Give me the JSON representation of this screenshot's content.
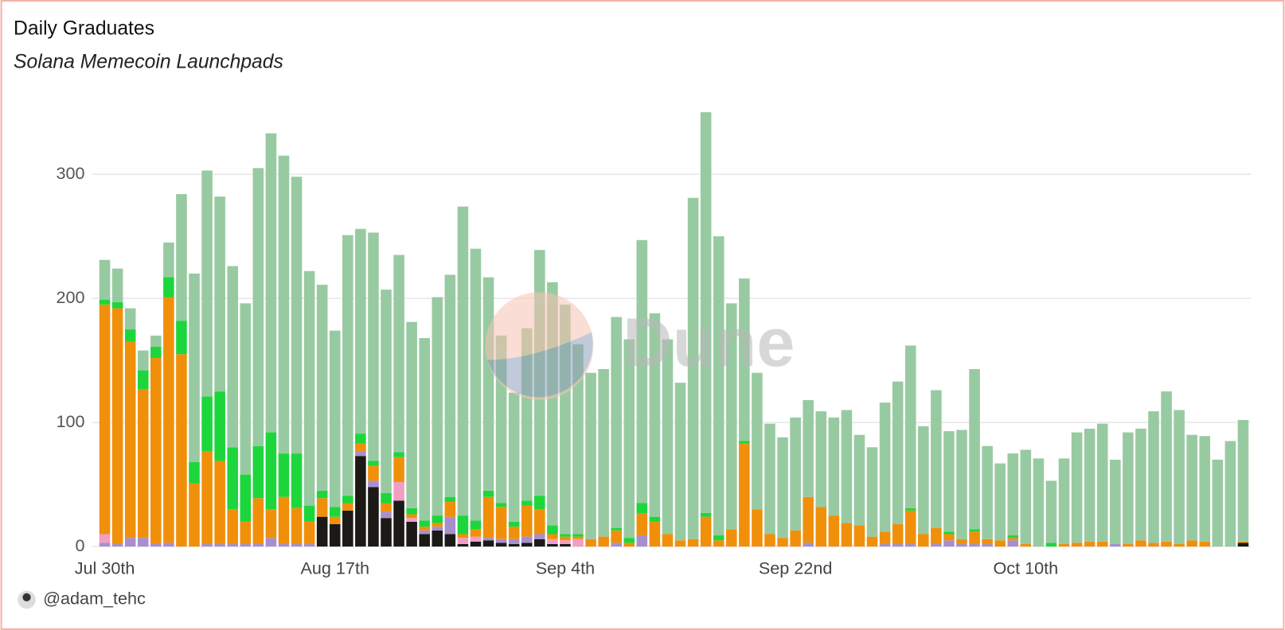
{
  "chart_data": {
    "type": "bar",
    "stacked": true,
    "title": "Daily Graduates",
    "subtitle": "Solana Memecoin Launchpads",
    "watermark": "Dune",
    "author": "@adam_tehc",
    "categories": [
      "Jul 30th",
      null,
      null,
      null,
      null,
      null,
      null,
      null,
      null,
      null,
      null,
      null,
      null,
      null,
      null,
      null,
      null,
      null,
      "Aug 17th",
      null,
      null,
      null,
      null,
      null,
      null,
      null,
      null,
      null,
      null,
      null,
      null,
      null,
      null,
      null,
      null,
      null,
      "Sep 4th",
      null,
      null,
      null,
      null,
      null,
      null,
      null,
      null,
      null,
      null,
      null,
      null,
      null,
      null,
      null,
      null,
      null,
      "Sep 22nd",
      null,
      null,
      null,
      null,
      null,
      null,
      null,
      null,
      null,
      null,
      null,
      null,
      null,
      null,
      null,
      null,
      null,
      "Oct 10th",
      null,
      null,
      null,
      null,
      null,
      null,
      null,
      null,
      null,
      null,
      null,
      null,
      null,
      null,
      null,
      null,
      null
    ],
    "series": [
      {
        "color": "#1c1a17",
        "values": [
          0,
          0,
          0,
          0,
          0,
          0,
          0,
          0,
          0,
          0,
          0,
          0,
          0,
          0,
          0,
          0,
          0,
          24,
          18,
          29,
          73,
          48,
          23,
          37,
          20,
          10,
          13,
          10,
          2,
          4,
          5,
          3,
          2,
          3,
          6,
          2,
          2,
          0,
          0,
          0,
          0,
          0,
          0,
          0,
          0,
          0,
          0,
          0,
          0,
          0,
          0,
          0,
          0,
          0,
          0,
          0,
          0,
          0,
          0,
          0,
          0,
          0,
          0,
          0,
          0,
          0,
          0,
          0,
          0,
          0,
          0,
          0,
          0,
          0,
          0,
          0,
          0,
          0,
          0,
          0,
          0,
          0,
          0,
          0,
          0,
          0,
          0,
          0,
          0,
          3
        ]
      },
      {
        "color": "#a78fcf",
        "values": [
          3,
          2,
          7,
          7,
          2,
          3,
          0,
          0,
          2,
          2,
          2,
          2,
          2,
          7,
          2,
          2,
          2,
          0,
          0,
          0,
          4,
          5,
          5,
          0,
          0,
          3,
          3,
          14,
          0,
          0,
          2,
          3,
          4,
          5,
          4,
          0,
          0,
          0,
          0,
          0,
          3,
          0,
          9,
          0,
          0,
          0,
          0,
          0,
          0,
          0,
          0,
          0,
          0,
          0,
          0,
          3,
          0,
          0,
          0,
          0,
          0,
          2,
          2,
          2,
          0,
          2,
          5,
          2,
          2,
          2,
          0,
          5,
          0,
          0,
          0,
          0,
          0,
          0,
          0,
          2,
          0,
          0,
          0,
          0,
          0,
          0,
          0,
          0,
          0,
          0
        ]
      },
      {
        "color": "#f29ec4",
        "values": [
          7,
          0,
          0,
          0,
          0,
          0,
          0,
          0,
          0,
          0,
          0,
          0,
          0,
          0,
          0,
          0,
          0,
          0,
          0,
          0,
          0,
          0,
          0,
          15,
          3,
          0,
          0,
          0,
          5,
          4,
          0,
          0,
          0,
          0,
          0,
          4,
          3,
          6,
          0,
          0,
          0,
          0,
          0,
          0,
          0,
          0,
          0,
          0,
          0,
          0,
          0,
          0,
          0,
          0,
          0,
          0,
          0,
          0,
          0,
          0,
          0,
          0,
          0,
          0,
          0,
          0,
          0,
          0,
          0,
          0,
          0,
          0,
          0,
          0,
          0,
          0,
          0,
          0,
          0,
          0,
          0,
          0,
          0,
          0,
          0,
          0,
          0,
          0,
          0,
          0
        ]
      },
      {
        "color": "#f0900a",
        "values": [
          185,
          190,
          158,
          120,
          150,
          198,
          155,
          51,
          75,
          67,
          28,
          18,
          37,
          23,
          38,
          29,
          18,
          15,
          6,
          6,
          6,
          12,
          7,
          20,
          3,
          3,
          3,
          12,
          3,
          6,
          33,
          26,
          10,
          25,
          20,
          4,
          3,
          2,
          6,
          8,
          10,
          3,
          18,
          20,
          10,
          5,
          6,
          24,
          5,
          14,
          83,
          30,
          10,
          7,
          13,
          37,
          32,
          25,
          19,
          17,
          8,
          10,
          16,
          27,
          10,
          13,
          5,
          4,
          10,
          4,
          5,
          2,
          2,
          0,
          0,
          2,
          3,
          4,
          4,
          0,
          2,
          5,
          3,
          4,
          2,
          5,
          4,
          0,
          0,
          1
        ]
      },
      {
        "color": "#1dd63c",
        "values": [
          4,
          5,
          10,
          15,
          9,
          16,
          27,
          17,
          44,
          56,
          50,
          38,
          42,
          62,
          35,
          44,
          13,
          6,
          8,
          6,
          8,
          4,
          8,
          4,
          5,
          5,
          6,
          4,
          15,
          7,
          5,
          3,
          4,
          4,
          11,
          7,
          2,
          2,
          0,
          0,
          2,
          4,
          8,
          4,
          0,
          0,
          0,
          3,
          4,
          0,
          2,
          0,
          0,
          0,
          0,
          0,
          0,
          0,
          0,
          0,
          0,
          0,
          0,
          2,
          0,
          0,
          2,
          0,
          2,
          0,
          0,
          2,
          0,
          0,
          3,
          0,
          0,
          0,
          0,
          0,
          0,
          0,
          0,
          0,
          0,
          0,
          0,
          0,
          0,
          0
        ]
      },
      {
        "color": "#98caa2",
        "values": [
          32,
          27,
          17,
          16,
          9,
          28,
          102,
          152,
          182,
          157,
          146,
          138,
          224,
          241,
          240,
          223,
          189,
          166,
          142,
          210,
          165,
          184,
          164,
          159,
          150,
          147,
          176,
          179,
          249,
          219,
          172,
          135,
          104,
          139,
          198,
          196,
          185,
          153,
          134,
          135,
          170,
          160,
          212,
          164,
          157,
          127,
          275,
          323,
          241,
          182,
          131,
          110,
          89,
          81,
          91,
          78,
          77,
          79,
          91,
          73,
          72,
          104,
          115,
          131,
          87,
          111,
          81,
          88,
          129,
          75,
          62,
          66,
          76,
          71,
          50,
          69,
          89,
          91,
          95,
          68,
          90,
          90,
          106,
          121,
          108,
          85,
          85,
          70,
          85,
          98
        ]
      }
    ],
    "ylim": [
      0,
      360
    ],
    "yticks": [
      0,
      100,
      200,
      300
    ],
    "grid": true
  }
}
